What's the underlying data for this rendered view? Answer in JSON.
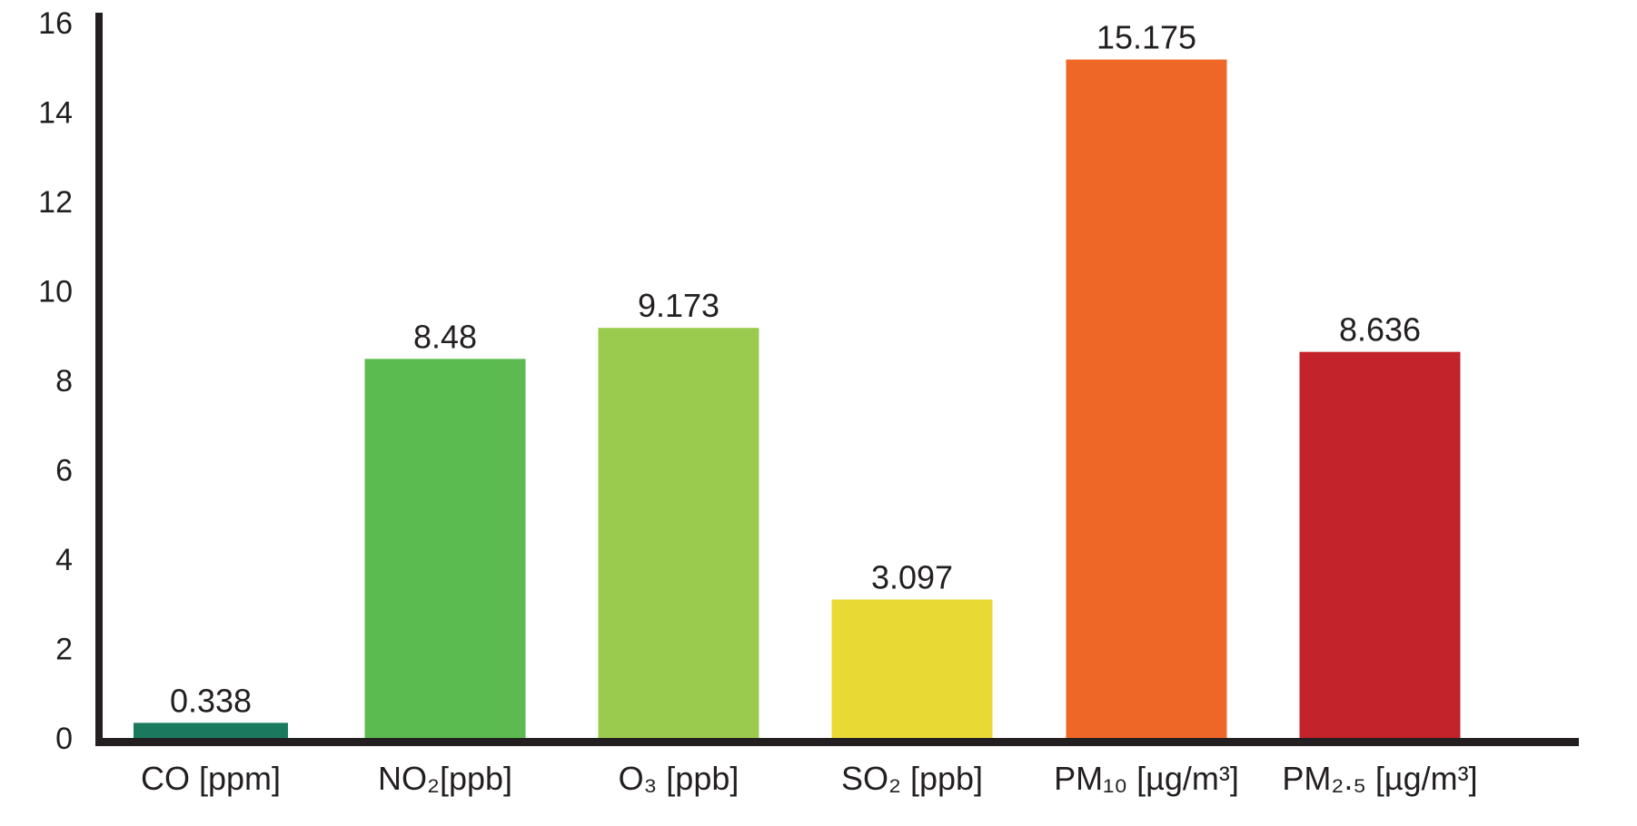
{
  "chart_data": {
    "type": "bar",
    "categories": [
      "CO [ppm]",
      "NO₂[ppb]",
      "O₃ [ppb]",
      "SO₂ [ppb]",
      "PM₁₀ [µg/m³]",
      "PM₂.₅ [µg/m³]"
    ],
    "values": [
      0.338,
      8.48,
      9.173,
      3.097,
      15.175,
      8.636
    ],
    "value_labels": [
      "0.338",
      "8.48",
      "9.173",
      "3.097",
      "15.175",
      "8.636"
    ],
    "colors": [
      "#1b7a5e",
      "#5cbb50",
      "#9acb4f",
      "#e9d935",
      "#ef6726",
      "#c3232a"
    ],
    "ylim": [
      0,
      16
    ],
    "yticks": [
      "0",
      "2",
      "4",
      "6",
      "8",
      "10",
      "12",
      "14",
      "16"
    ],
    "grid": false,
    "axis_color": "#231f20"
  }
}
